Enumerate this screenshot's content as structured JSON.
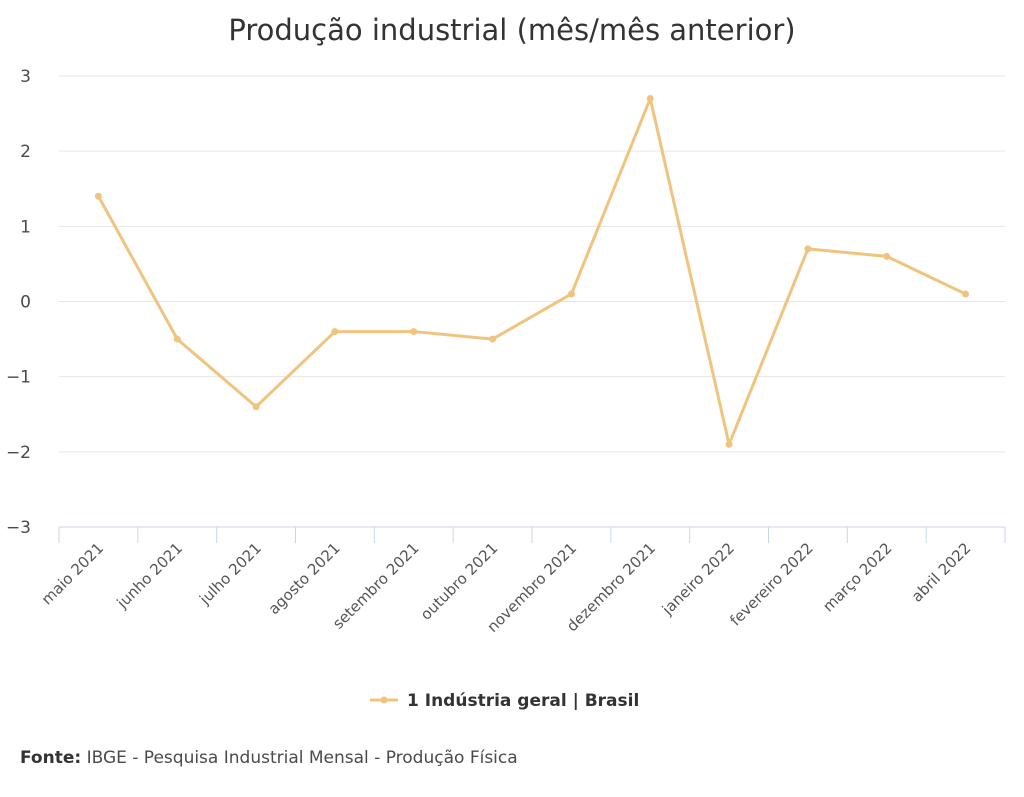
{
  "chart_data": {
    "type": "line",
    "title": "Produção industrial (mês/mês anterior)",
    "xlabel": "",
    "ylabel": "",
    "categories": [
      "maio 2021",
      "junho 2021",
      "julho 2021",
      "agosto 2021",
      "setembro 2021",
      "outubro 2021",
      "novembro 2021",
      "dezembro 2021",
      "janeiro 2022",
      "fevereiro 2022",
      "março 2022",
      "abril 2022"
    ],
    "series": [
      {
        "name": "1 Indústria geral | Brasil",
        "color": "#f0c47e",
        "values": [
          1.4,
          -0.5,
          -1.4,
          -0.4,
          -0.4,
          -0.5,
          0.1,
          2.7,
          -1.9,
          0.7,
          0.6,
          0.1
        ]
      }
    ],
    "ylim": [
      -3,
      3
    ],
    "yticks": [
      3,
      2,
      1,
      0,
      -1,
      -2,
      -3
    ],
    "ytick_labels": [
      "3",
      "2",
      "1",
      "0",
      "−1",
      "−2",
      "−3"
    ],
    "grid": true,
    "legend_position": "bottom-center"
  },
  "source": {
    "label": "Fonte:",
    "text": "IBGE - Pesquisa Industrial Mensal - Produção Física"
  }
}
